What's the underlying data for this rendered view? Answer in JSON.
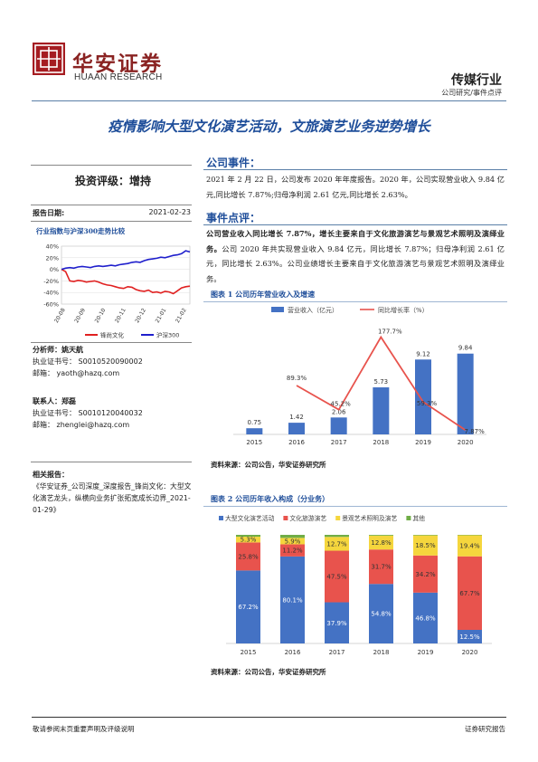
{
  "header": {
    "logo_cn": "华安证券",
    "logo_en": "HUAAN RESEARCH",
    "industry": "传媒行业",
    "report_type": "公司研究/事件点评"
  },
  "title": "疫情影响大型文化演艺活动，文旅演艺业务逆势增长",
  "left": {
    "rating_label": "投资评级：",
    "rating_value": "增持",
    "report_date_label": "报告日期:",
    "report_date": "2021-02-23",
    "mini_chart_title": "行业指数与沪深300走势比较",
    "analyst_label": "分析师：",
    "analyst_name": "姚天航",
    "analyst_cert": "执业证书号：  S0010520090002",
    "analyst_email": "邮箱：   yaoth@hazq.com",
    "contact_label": "联系人：",
    "contact_name": "郑磊",
    "contact_cert": "执业证书号：  S0010120040032",
    "contact_email": "邮箱：   zhenglei@hazq.com",
    "related_label": "相关报告：",
    "related_text": "《华安证券_公司深度_深度报告_锋尚文化：大型文化演艺龙头，纵横向业务扩张拓宽成长边界_2021-01-29》"
  },
  "event": {
    "heading": "公司事件：",
    "text": "2021 年 2 月 22 日，公司发布 2020 年年度报告。2020 年，公司实现营业收入 9.84 亿元,同比增长 7.87%;归母净利润 2.61 亿元,同比增长 2.63%。"
  },
  "comment": {
    "heading": "事件点评：",
    "bold_text": "公司营业收入同比增长 7.87%，增长主要来自于文化旅游演艺与景观艺术照明及演绎业务。",
    "text": "公司 2020 年共实现营业收入 9.84 亿元，同比增长 7.87%；归母净利润 2.61 亿元，同比增长 2.63%。公司业绩增长主要来自于文化旅游演艺与景观艺术照明及演绎业务。"
  },
  "figure1": {
    "title": "图表 1  公司历年营业收入及增速",
    "source": "资料来源：公司公告，华安证券研究所"
  },
  "figure2": {
    "title": "图表 2  公司历年收入构成（分业务）",
    "source": "资料来源：公司公告，华安证券研究所"
  },
  "footer": {
    "left": "敬请参阅末页重要声明及评级说明",
    "right": "证券研究报告"
  },
  "chart_data": [
    {
      "type": "line",
      "title": "行业指数与沪深300走势比较",
      "x_ticks": [
        "20-08",
        "20-09",
        "20-10",
        "20-11",
        "20-12",
        "21-01",
        "21-02"
      ],
      "ylim": [
        -60,
        40
      ],
      "y_ticks": [
        "40%",
        "20%",
        "0%",
        "-20%",
        "-40%",
        "-60%"
      ],
      "series": [
        {
          "name": "锋尚文化",
          "color": "#e02020",
          "values": [
            0,
            -4,
            -20,
            -21,
            -19,
            -20,
            -22,
            -21,
            -20,
            -22,
            -25,
            -27,
            -28,
            -30,
            -32,
            -33,
            -30,
            -31,
            -35,
            -37,
            -38,
            -36,
            -40,
            -39,
            -41,
            -38,
            -39,
            -42,
            -37,
            -32,
            -30,
            -29
          ]
        },
        {
          "name": "沪深300",
          "color": "#1f1fcc",
          "values": [
            0,
            2,
            3,
            2,
            4,
            5,
            4,
            3,
            5,
            6,
            5,
            6,
            7,
            6,
            8,
            9,
            10,
            12,
            13,
            12,
            15,
            17,
            18,
            19,
            21,
            20,
            22,
            24,
            25,
            27,
            32,
            30
          ]
        }
      ],
      "legend": "bottom"
    },
    {
      "type": "bar",
      "title": "公司历年营业收入及增速",
      "categories": [
        "2015",
        "2016",
        "2017",
        "2018",
        "2019",
        "2020"
      ],
      "series": [
        {
          "name": "营业收入（亿元）",
          "type": "bar",
          "color": "#4472c4",
          "values": [
            0.75,
            1.42,
            2.06,
            5.73,
            9.12,
            9.84
          ],
          "labels": [
            "0.75",
            "1.42",
            "2.06",
            "5.73",
            "9.12",
            "9.84"
          ]
        },
        {
          "name": "同比增长率（%）",
          "type": "line",
          "color": "#e8534d",
          "values": [
            null,
            89.3,
            45.2,
            177.7,
            59.3,
            7.87
          ],
          "labels": [
            "",
            "89.3%",
            "45.2%",
            "177.7%",
            "59.3%",
            "7.87%"
          ]
        }
      ],
      "legend": "top"
    },
    {
      "type": "bar",
      "stacked": true,
      "title": "公司历年收入构成（分业务）",
      "categories": [
        "2015",
        "2016",
        "2017",
        "2018",
        "2019",
        "2020"
      ],
      "series": [
        {
          "name": "大型文化演艺活动",
          "color": "#4472c4",
          "values": [
            67.2,
            80.1,
            37.9,
            54.8,
            46.8,
            12.5
          ]
        },
        {
          "name": "文化旅游演艺",
          "color": "#e8534d",
          "values": [
            25.8,
            11.2,
            47.5,
            31.7,
            34.2,
            67.7
          ]
        },
        {
          "name": "景观艺术照明及演艺",
          "color": "#f5d63d",
          "values": [
            5.3,
            5.9,
            12.7,
            12.8,
            18.5,
            19.4
          ]
        },
        {
          "name": "其他",
          "color": "#70ad47",
          "values": [
            1.7,
            2.8,
            1.9,
            0.7,
            0.5,
            0.4
          ]
        }
      ],
      "labels": [
        [
          "67.2%",
          "25.8%",
          "5.3%"
        ],
        [
          "80.1%",
          "11.2%",
          "5.9%"
        ],
        [
          "37.9%",
          "47.5%",
          "12.7%"
        ],
        [
          "54.8%",
          "31.7%",
          "12.8%"
        ],
        [
          "46.8%",
          "34.2%",
          "18.5%"
        ],
        [
          "12.5%",
          "67.7%",
          "19.4%"
        ]
      ],
      "ylim": [
        0,
        100
      ],
      "legend": "top"
    }
  ]
}
